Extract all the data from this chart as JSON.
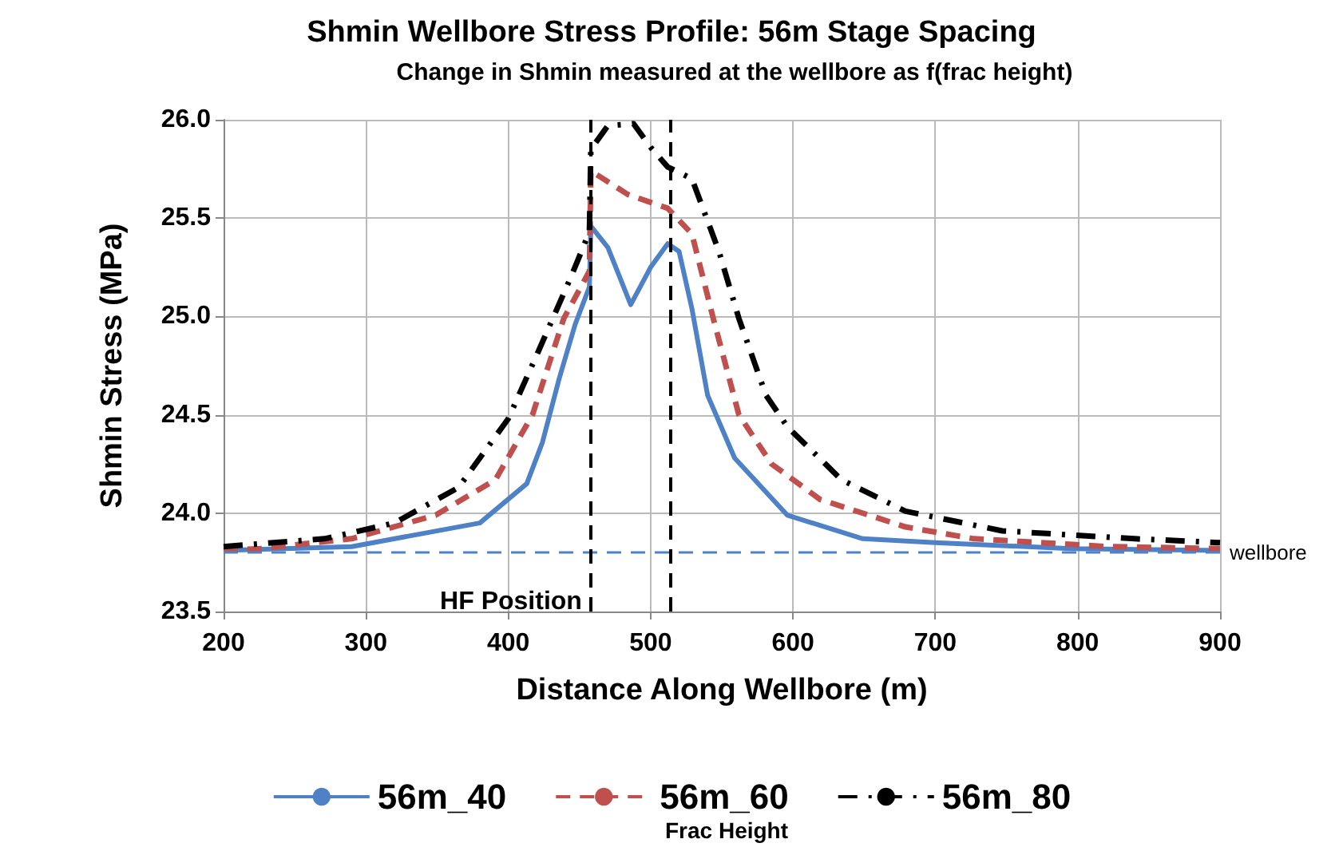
{
  "chart_data": {
    "type": "line",
    "title": "Shmin Wellbore Stress Profile: 56m Stage Spacing",
    "subtitle": "Change in Shmin measured at the wellbore as f(frac height)",
    "xlabel": "Distance Along Wellbore (m)",
    "ylabel": "Shmin Stress (MPa)",
    "legend_title": "Frac Height",
    "xlim": [
      200,
      900
    ],
    "xticks": [
      200,
      300,
      400,
      500,
      600,
      700,
      800,
      900
    ],
    "ylim": [
      23.5,
      26
    ],
    "yticks": [
      {
        "value": 23.5,
        "label": "23.5"
      },
      {
        "value": 24,
        "label": "24.0"
      },
      {
        "value": 24.5,
        "label": "24.5"
      },
      {
        "value": 25,
        "label": "25.0"
      },
      {
        "value": 25.5,
        "label": "25.5"
      },
      {
        "value": 26,
        "label": "26.0"
      }
    ],
    "grid": true,
    "legend": "bottom",
    "marker": "none",
    "series": [
      {
        "name": "56m_40",
        "color": "#4f81c7",
        "line_style": "solid",
        "x": [
          200,
          290,
          380,
          413,
          424,
          436,
          447,
          457,
          458,
          470,
          486,
          500,
          512,
          520,
          529,
          540,
          559,
          596,
          649,
          700,
          795,
          900
        ],
        "values": [
          23.81,
          23.83,
          23.95,
          24.15,
          24.36,
          24.69,
          24.96,
          25.15,
          25.46,
          25.35,
          25.06,
          25.25,
          25.37,
          25.33,
          25.04,
          24.6,
          24.28,
          23.99,
          23.87,
          23.85,
          23.82,
          23.81
        ]
      },
      {
        "name": "56m_60",
        "color": "#c0504d",
        "line_style": "dashed",
        "x": [
          200,
          226,
          290,
          349,
          391,
          417,
          439,
          457,
          458,
          484,
          512,
          529,
          544,
          562,
          585,
          619,
          679,
          727,
          821,
          900
        ],
        "values": [
          23.81,
          23.82,
          23.87,
          23.99,
          24.17,
          24.5,
          24.99,
          25.23,
          25.74,
          25.62,
          25.55,
          25.42,
          24.99,
          24.5,
          24.25,
          24.07,
          23.93,
          23.87,
          23.83,
          23.82
        ]
      },
      {
        "name": "56m_80",
        "color": "#000000",
        "line_style": "dashdot",
        "x": [
          200,
          271,
          320,
          365,
          400,
          421,
          444,
          457,
          458,
          470,
          488,
          500,
          512,
          529,
          548,
          562,
          581,
          596,
          634,
          679,
          747,
          840,
          900
        ],
        "values": [
          23.83,
          23.87,
          23.95,
          24.13,
          24.48,
          24.82,
          25.2,
          25.43,
          25.85,
          25.97,
          25.98,
          25.86,
          25.76,
          25.7,
          25.33,
          24.99,
          24.6,
          24.44,
          24.17,
          24.01,
          23.91,
          23.87,
          23.85
        ]
      }
    ],
    "ref_lines": [
      {
        "axis": "y",
        "value": 23.8,
        "label": "wellbore",
        "color": "#4f81c7",
        "line_style": "dashed"
      },
      {
        "axis": "x",
        "value": 458,
        "label": "HF Position",
        "color": "#000000",
        "line_style": "dashed"
      },
      {
        "axis": "x",
        "value": 514,
        "label": null,
        "color": "#000000",
        "line_style": "dashed"
      }
    ]
  }
}
